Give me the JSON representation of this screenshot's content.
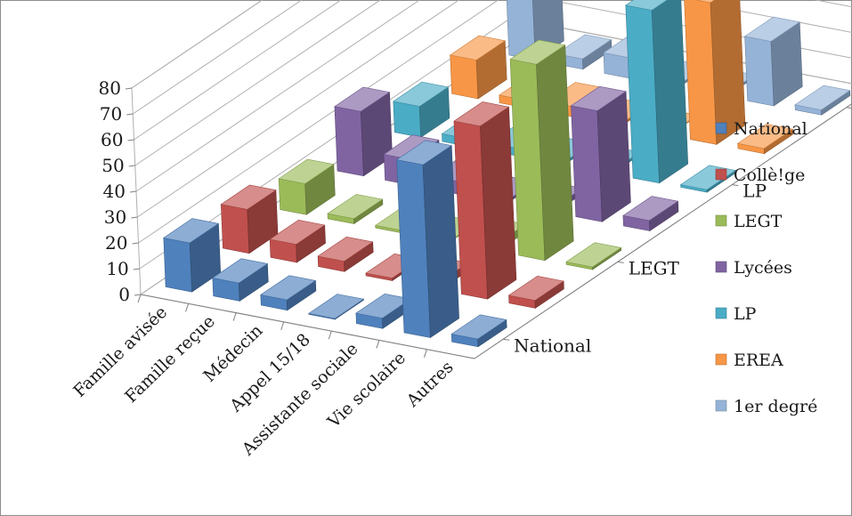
{
  "chart_data": {
    "type": "bar",
    "subtype": "3d-column",
    "title": "",
    "categories": [
      "Famille avisée",
      "Famille reçue",
      "Médecin",
      "Appel 15/18",
      "Assistante sociale",
      "Vie scolaire",
      "Autres"
    ],
    "depth_labels": [
      "National",
      "LEGT",
      "LP",
      "1er degré"
    ],
    "ylim": [
      0,
      80
    ],
    "yticks": [
      0,
      10,
      20,
      30,
      40,
      50,
      60,
      70,
      80
    ],
    "grid": true,
    "legend_position": "right",
    "series": [
      {
        "name": "National",
        "color": "#4f81bd",
        "values": [
          19,
          7,
          4,
          0,
          4,
          67,
          3
        ]
      },
      {
        "name": "Collè!ge",
        "color": "#c0504d",
        "values": [
          17,
          7,
          4,
          1,
          3,
          67,
          3
        ]
      },
      {
        "name": "LEGT",
        "color": "#9bbb59",
        "values": [
          12,
          2,
          1,
          0,
          3,
          76,
          1
        ]
      },
      {
        "name": "Lycées",
        "color": "#8064a2",
        "values": [
          25,
          10,
          5,
          1,
          2,
          43,
          4
        ]
      },
      {
        "name": "LP",
        "color": "#4bacc6",
        "values": [
          12,
          3,
          3,
          1,
          1,
          67,
          1
        ]
      },
      {
        "name": "EREA",
        "color": "#f79646",
        "values": [
          15,
          3,
          4,
          1,
          0,
          55,
          2
        ]
      },
      {
        "name": "1er degré",
        "color": "#95b3d7",
        "values": [
          35,
          4,
          8,
          1,
          1,
          25,
          2
        ]
      }
    ]
  }
}
